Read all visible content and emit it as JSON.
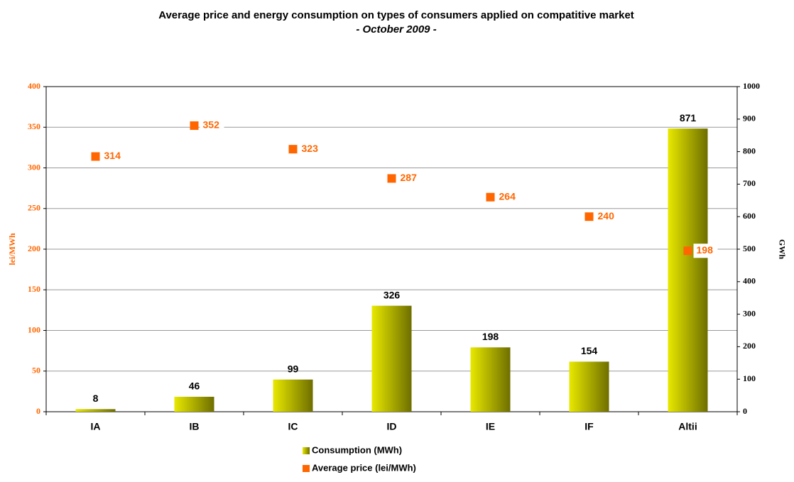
{
  "chart_data": {
    "type": "bar",
    "title": "Average price and energy consumption on types of consumers applied on compatitive market",
    "subtitle": "- October 2009 -",
    "y_label": "lei/MWh",
    "y2_label": "GWh",
    "categories": [
      "IA",
      "IB",
      "IC",
      "ID",
      "IE",
      "IF",
      "Altii"
    ],
    "series": [
      {
        "name": "Consumption (MWh)",
        "type": "bar",
        "axis": "y2",
        "color": "#e8e800",
        "values": [
          8,
          46,
          99,
          326,
          198,
          154,
          871
        ]
      },
      {
        "name": "Average price (lei/MWh)",
        "type": "scatter",
        "axis": "y",
        "color": "#ff6600",
        "values": [
          314,
          352,
          323,
          287,
          264,
          240,
          198
        ]
      }
    ],
    "ylim": [
      0,
      400
    ],
    "yticks": [
      0,
      50,
      100,
      150,
      200,
      250,
      300,
      350,
      400
    ],
    "y2lim": [
      0,
      1000
    ],
    "y2ticks": [
      0,
      100,
      200,
      300,
      400,
      500,
      600,
      700,
      800,
      900,
      1000
    ],
    "grid": true,
    "legend": "bottom"
  }
}
